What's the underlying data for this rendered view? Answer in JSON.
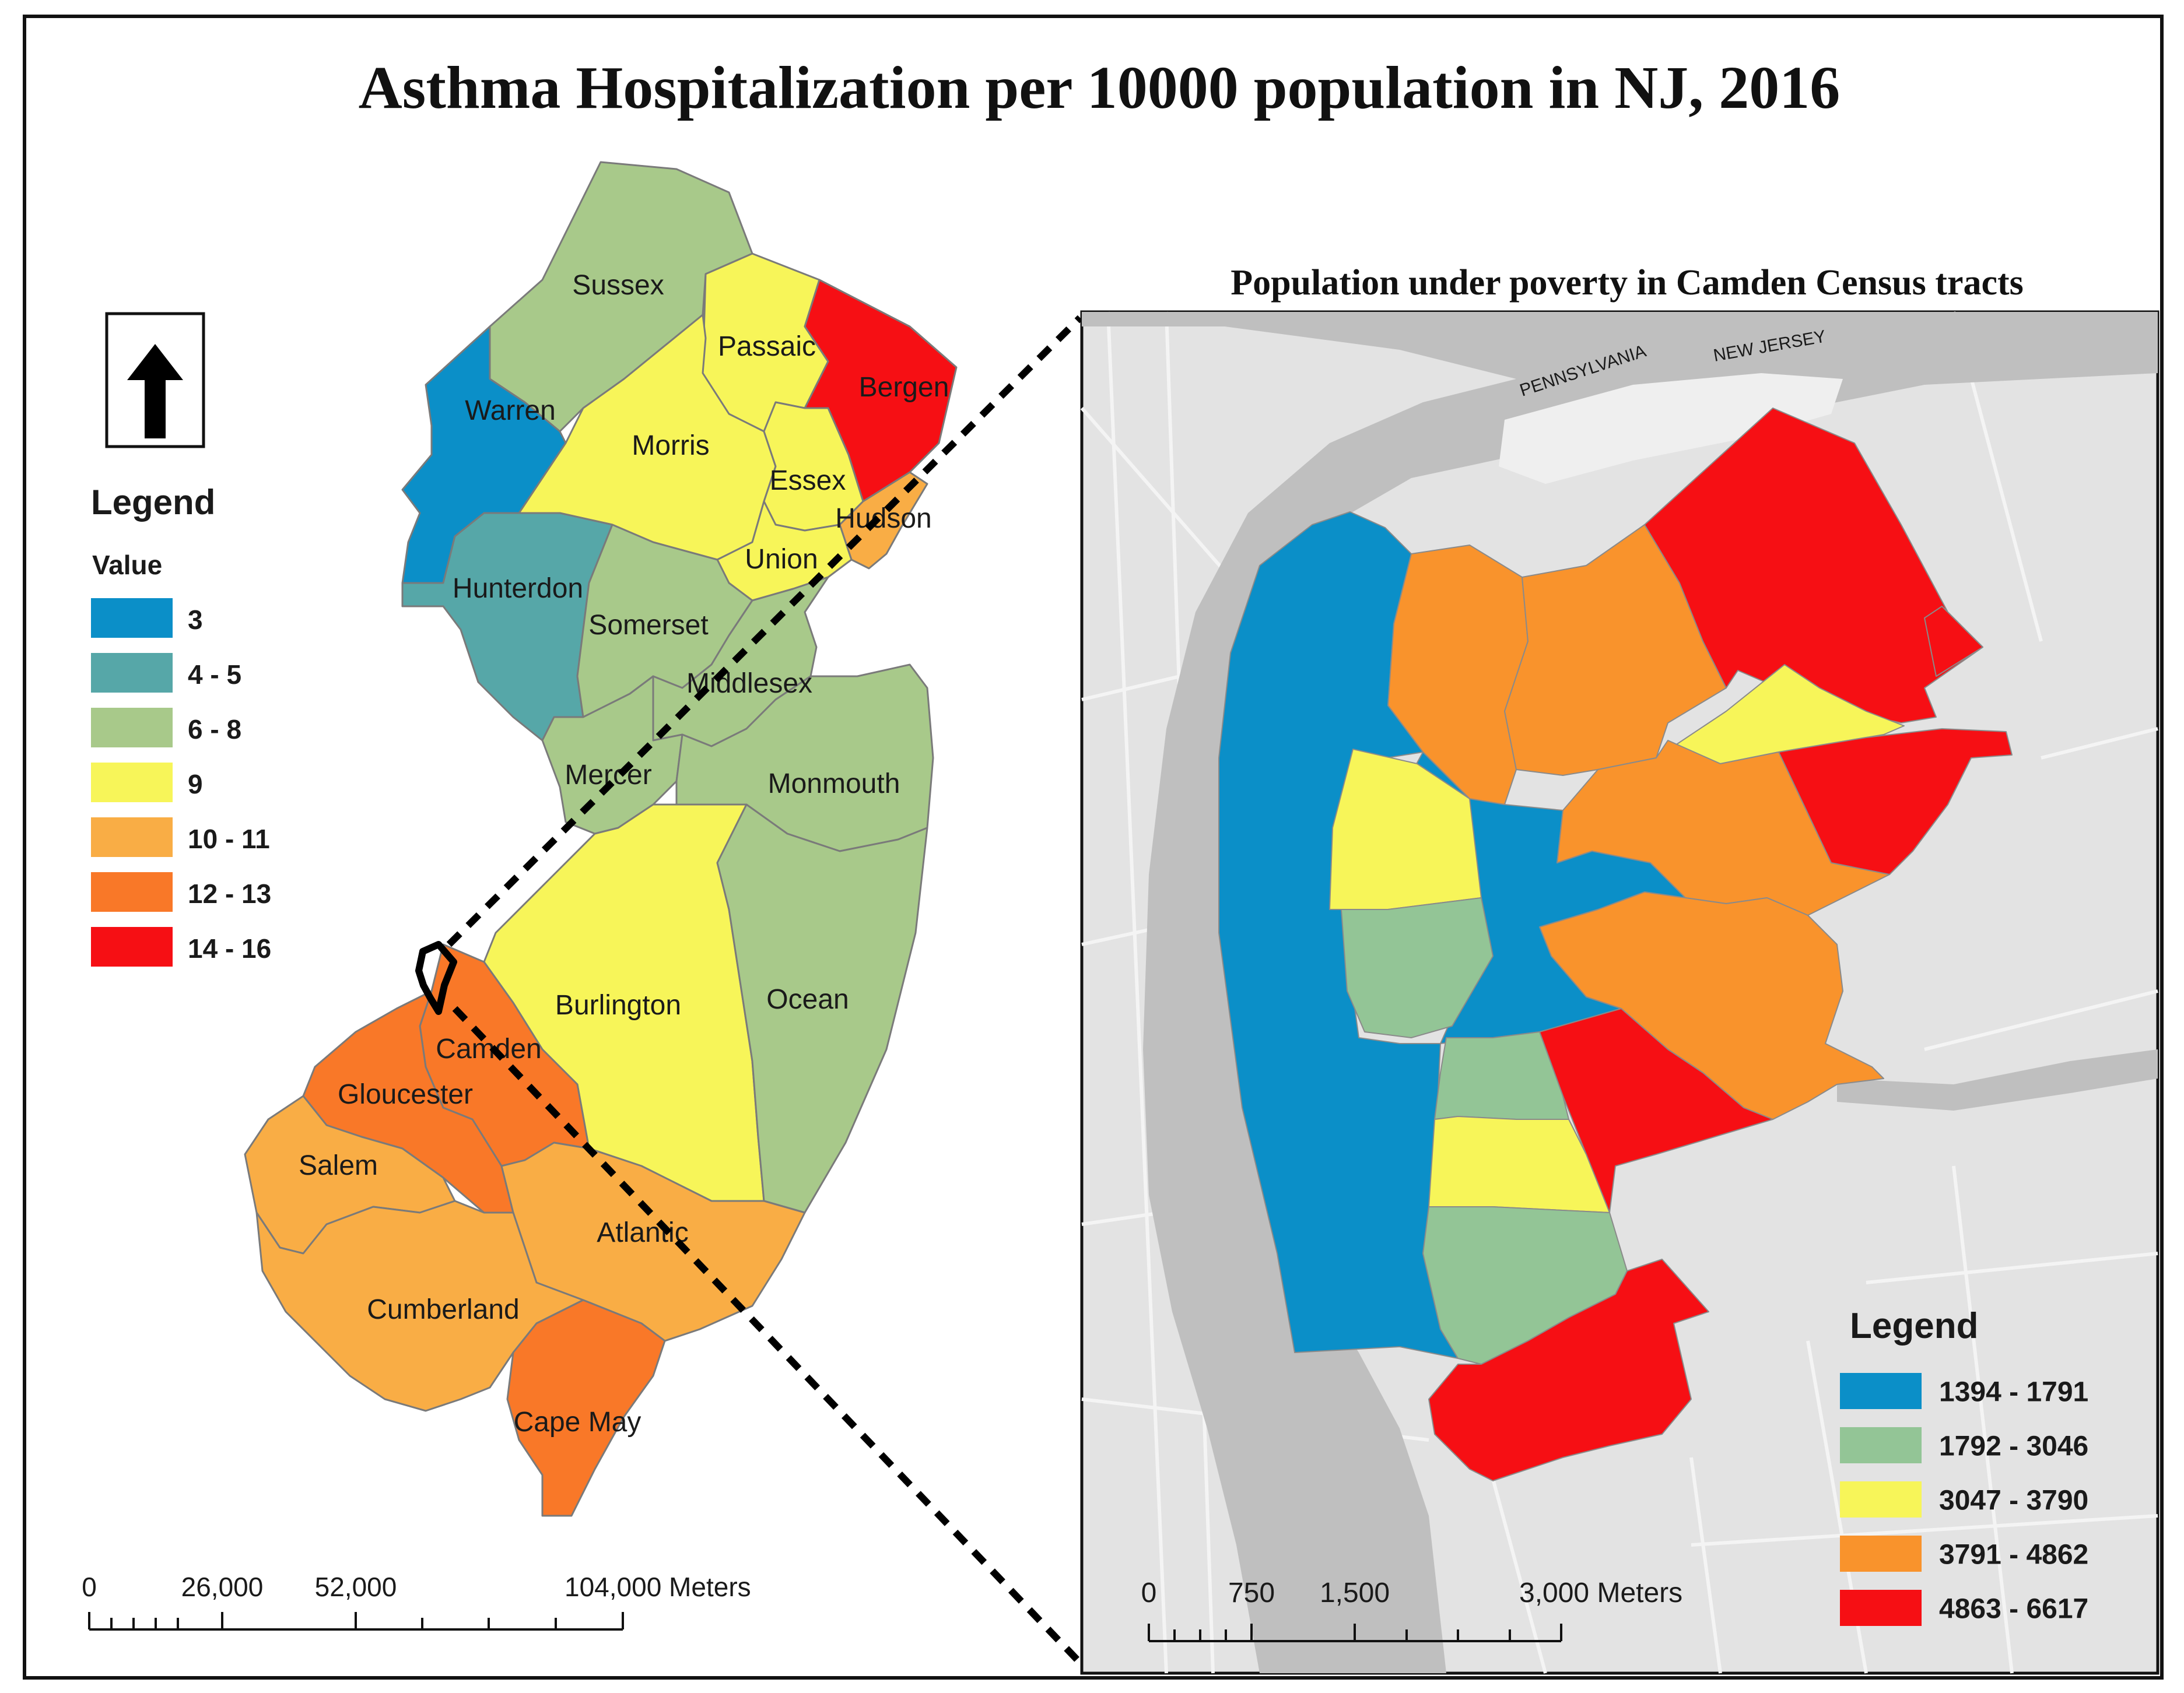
{
  "main_title": "Asthma Hospitalization per 10000 population in NJ, 2016",
  "inset_title": "Population under poverty in Camden Census tracts",
  "colors": {
    "blue": "#0b8fc8",
    "teal": "#56a7a8",
    "lightgreen": "#a8c98a",
    "yellow": "#f7f559",
    "lightorange": "#f9ad45",
    "orange": "#f97828",
    "red": "#f60f14",
    "tractgreen": "#93c596",
    "tractorange": "#f9932c"
  },
  "nj_map": {
    "north_arrow": "north-arrow-icon",
    "legend": {
      "title": "Legend",
      "subtitle": "Value",
      "classes": [
        {
          "label": "3",
          "color": "#0b8fc8"
        },
        {
          "label": "4 - 5",
          "color": "#56a7a8"
        },
        {
          "label": "6 - 8",
          "color": "#a8c98a"
        },
        {
          "label": "9",
          "color": "#f7f559"
        },
        {
          "label": "10 - 11",
          "color": "#f9ad45"
        },
        {
          "label": "12 - 13",
          "color": "#f97828"
        },
        {
          "label": "14 - 16",
          "color": "#f60f14"
        }
      ]
    },
    "counties": [
      {
        "name": "Sussex",
        "value_class": "6 - 8"
      },
      {
        "name": "Passaic",
        "value_class": "9"
      },
      {
        "name": "Bergen",
        "value_class": "14 - 16"
      },
      {
        "name": "Warren",
        "value_class": "3"
      },
      {
        "name": "Morris",
        "value_class": "9"
      },
      {
        "name": "Essex",
        "value_class": "9"
      },
      {
        "name": "Hudson",
        "value_class": "10 - 11"
      },
      {
        "name": "Union",
        "value_class": "9"
      },
      {
        "name": "Hunterdon",
        "value_class": "4 - 5"
      },
      {
        "name": "Somerset",
        "value_class": "6 - 8"
      },
      {
        "name": "Middlesex",
        "value_class": "6 - 8"
      },
      {
        "name": "Mercer",
        "value_class": "6 - 8"
      },
      {
        "name": "Monmouth",
        "value_class": "6 - 8"
      },
      {
        "name": "Burlington",
        "value_class": "9"
      },
      {
        "name": "Ocean",
        "value_class": "6 - 8"
      },
      {
        "name": "Camden",
        "value_class": "12 - 13"
      },
      {
        "name": "Gloucester",
        "value_class": "12 - 13"
      },
      {
        "name": "Salem",
        "value_class": "10 - 11"
      },
      {
        "name": "Atlantic",
        "value_class": "10 - 11"
      },
      {
        "name": "Cumberland",
        "value_class": "10 - 11"
      },
      {
        "name": "Cape May",
        "value_class": "12 - 13"
      }
    ],
    "scale_bar": {
      "labels": [
        "0",
        "26,000",
        "52,000",
        "104,000 Meters"
      ]
    }
  },
  "inset_map": {
    "basemap_labels": [
      "PENNSYLVANIA",
      "NEW JERSEY"
    ],
    "legend": {
      "title": "Legend",
      "classes": [
        {
          "label": "1394 - 1791",
          "color": "#0b8fc8"
        },
        {
          "label": "1792 - 3046",
          "color": "#93c596"
        },
        {
          "label": "3047 - 3790",
          "color": "#f7f559"
        },
        {
          "label": "3791 - 4862",
          "color": "#f9932c"
        },
        {
          "label": "4863 - 6617",
          "color": "#f60f14"
        }
      ]
    },
    "scale_bar": {
      "labels": [
        "0",
        "750",
        "1,500",
        "3,000 Meters"
      ]
    }
  }
}
